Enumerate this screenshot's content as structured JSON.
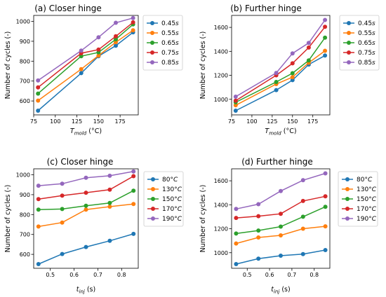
{
  "colors": [
    "#1f77b4",
    "#ff7f0e",
    "#2ca02c",
    "#d62728",
    "#9467bd"
  ],
  "chart_data": [
    {
      "type": "line",
      "title": "(a) Closer hinge",
      "xlabel_main": "T",
      "xlabel_sub": "mold",
      "xlabel_tail": " (°C)",
      "ylabel": "Number of cycles (-)",
      "xlim": [
        75,
        196
      ],
      "ylim": [
        530,
        1030
      ],
      "xticks": [
        75,
        100,
        125,
        150,
        175
      ],
      "yticks": [
        600,
        700,
        800,
        900,
        1000
      ],
      "legend": "right-outside",
      "x": [
        80,
        130,
        150,
        170,
        190
      ],
      "series": [
        {
          "name": "0.45",
          "unit": "s",
          "values": [
            551,
            740,
            825,
            878,
            945
          ]
        },
        {
          "name": "0.55",
          "unit": "s",
          "values": [
            602,
            760,
            828,
            895,
            955
          ]
        },
        {
          "name": "0.65",
          "unit": "s",
          "values": [
            637,
            825,
            844,
            910,
            985
          ]
        },
        {
          "name": "0.75",
          "unit": "s",
          "values": [
            668,
            840,
            858,
            925,
            995
          ]
        },
        {
          "name": "0.85",
          "unit": "s",
          "values": [
            703,
            853,
            920,
            993,
            1017
          ]
        }
      ]
    },
    {
      "type": "line",
      "title": "(b) Further hinge",
      "xlabel_main": "T",
      "xlabel_sub": "mold",
      "xlabel_tail": " (°C)",
      "ylabel": "Number of cycles (-)",
      "xlim": [
        75,
        196
      ],
      "ylim": [
        870,
        1700
      ],
      "xticks": [
        75,
        100,
        125,
        150,
        175
      ],
      "yticks": [
        1000,
        1200,
        1400,
        1600
      ],
      "legend": "right-outside",
      "x": [
        80,
        130,
        150,
        170,
        190
      ],
      "series": [
        {
          "name": "0.45",
          "unit": "s",
          "values": [
            905,
            1077,
            1160,
            1290,
            1365
          ]
        },
        {
          "name": "0.55",
          "unit": "s",
          "values": [
            950,
            1127,
            1185,
            1305,
            1405
          ]
        },
        {
          "name": "0.65",
          "unit": "s",
          "values": [
            975,
            1145,
            1218,
            1325,
            1515
          ]
        },
        {
          "name": "0.75",
          "unit": "s",
          "values": [
            988,
            1200,
            1300,
            1432,
            1605
          ]
        },
        {
          "name": "0.85",
          "unit": "s",
          "values": [
            1022,
            1220,
            1383,
            1470,
            1662
          ]
        }
      ]
    },
    {
      "type": "line",
      "title": "(c) Closer hinge",
      "xlabel_main": "t",
      "xlabel_sub": "inj",
      "xlabel_tail": " (s)",
      "ylabel": "Number of cycles (-)",
      "xlim": [
        0.43,
        0.87
      ],
      "ylim": [
        530,
        1030
      ],
      "xticks": [
        0.5,
        0.6,
        0.7,
        0.8
      ],
      "yticks": [
        600,
        700,
        800,
        900,
        1000
      ],
      "legend": "right-outside",
      "x": [
        0.45,
        0.55,
        0.65,
        0.75,
        0.85
      ],
      "series": [
        {
          "name": "80",
          "unit": "°C",
          "values": [
            551,
            602,
            637,
            668,
            703
          ]
        },
        {
          "name": "130",
          "unit": "°C",
          "values": [
            740,
            760,
            825,
            840,
            853
          ]
        },
        {
          "name": "150",
          "unit": "°C",
          "values": [
            825,
            828,
            844,
            858,
            920
          ]
        },
        {
          "name": "170",
          "unit": "°C",
          "values": [
            878,
            895,
            910,
            925,
            993
          ]
        },
        {
          "name": "190",
          "unit": "°C",
          "values": [
            945,
            955,
            985,
            995,
            1017
          ]
        }
      ]
    },
    {
      "type": "line",
      "title": "(d) Further hinge",
      "xlabel_main": "t",
      "xlabel_sub": "inj",
      "xlabel_tail": " (s)",
      "ylabel": "Number of cycles (-)",
      "xlim": [
        0.43,
        0.87
      ],
      "ylim": [
        870,
        1700
      ],
      "xticks": [
        0.5,
        0.6,
        0.7,
        0.8
      ],
      "yticks": [
        1000,
        1200,
        1400,
        1600
      ],
      "legend": "right-outside",
      "x": [
        0.45,
        0.55,
        0.65,
        0.75,
        0.85
      ],
      "series": [
        {
          "name": "80",
          "unit": "°C",
          "values": [
            905,
            950,
            975,
            988,
            1022
          ]
        },
        {
          "name": "130",
          "unit": "°C",
          "values": [
            1077,
            1127,
            1145,
            1200,
            1220
          ]
        },
        {
          "name": "150",
          "unit": "°C",
          "values": [
            1160,
            1185,
            1218,
            1300,
            1383
          ]
        },
        {
          "name": "170",
          "unit": "°C",
          "values": [
            1290,
            1305,
            1325,
            1432,
            1470
          ]
        },
        {
          "name": "190",
          "unit": "°C",
          "values": [
            1365,
            1405,
            1515,
            1605,
            1662
          ]
        }
      ]
    }
  ]
}
